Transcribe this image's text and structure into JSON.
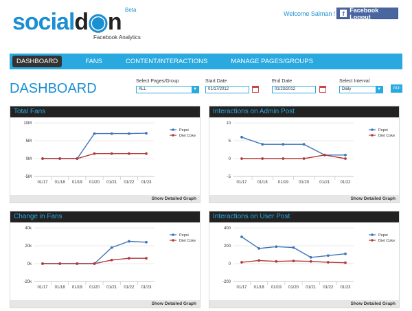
{
  "header": {
    "logo": {
      "text_main": "social",
      "text_dark": "d",
      "text_end": "n",
      "beta": "Beta",
      "subtitle": "Facebook Analytics"
    },
    "welcome": "Welcome Salman !",
    "logout_label": "Facebook Logout"
  },
  "nav": {
    "items": [
      "DASHBOARD",
      "FANS",
      "CONTENT/INTERACTIONS",
      "MANAGE PAGES/GROUPS"
    ]
  },
  "page_title": "DASHBOARD",
  "filters": {
    "pages_label": "Select Pages/Group",
    "pages_value": "ALL",
    "start_label": "Start Date",
    "start_value": "01/17/2012",
    "end_label": "End Date",
    "end_value": "01/23/2012",
    "interval_label": "Select Interval",
    "interval_value": "Daily",
    "go_label": "GO!"
  },
  "colors": {
    "accent": "#29a9e0",
    "pepsi": "#3f74b8",
    "dietcoke": "#b23a3a"
  },
  "panels": [
    {
      "title": "Total Fans",
      "footer": "Show Detailed Graph"
    },
    {
      "title": "Interactions on Admin Post",
      "footer": "Show Detailed Graph"
    },
    {
      "title": "Change in Fans",
      "footer": "Show Detailed Graph"
    },
    {
      "title": "Interactions on User Post",
      "footer": "Show Detailed Graph"
    }
  ],
  "chart_data": [
    {
      "type": "line",
      "title": "Total Fans",
      "categories": [
        "01/17",
        "01/18",
        "01/19",
        "01/20",
        "01/21",
        "01/22",
        "01/23"
      ],
      "yticks": [
        "10M",
        "5M",
        "0M",
        "-5M"
      ],
      "ytick_values": [
        10,
        5,
        0,
        -5
      ],
      "ylim": [
        -5,
        10
      ],
      "grid": true,
      "legend": "top-right",
      "series": [
        {
          "name": "Pepsi",
          "values": [
            0,
            0,
            0,
            7,
            7,
            7,
            7.1
          ]
        },
        {
          "name": "Diet Coke",
          "values": [
            0,
            0,
            0,
            1.4,
            1.4,
            1.4,
            1.4
          ]
        }
      ]
    },
    {
      "type": "line",
      "title": "Interactions on Admin Post",
      "categories": [
        "01/17",
        "01/18",
        "01/19",
        "01/20",
        "01/21",
        "01/22"
      ],
      "yticks": [
        "10",
        "5",
        "0",
        "-5"
      ],
      "ytick_values": [
        10,
        5,
        0,
        -5
      ],
      "ylim": [
        -5,
        10
      ],
      "grid": true,
      "legend": "top-right",
      "series": [
        {
          "name": "Pepsi",
          "values": [
            6,
            4,
            4,
            4,
            1,
            1
          ]
        },
        {
          "name": "Diet Coke",
          "values": [
            0,
            0,
            0,
            0,
            1,
            0
          ]
        }
      ]
    },
    {
      "type": "line",
      "title": "Change in Fans",
      "categories": [
        "01/17",
        "01/18",
        "01/19",
        "01/20",
        "01/21",
        "01/22",
        "01/23"
      ],
      "yticks": [
        "40k",
        "20k",
        "0k",
        "-20k"
      ],
      "ytick_values": [
        40,
        20,
        0,
        -20
      ],
      "ylim": [
        -20,
        40
      ],
      "grid": true,
      "legend": "top-right",
      "series": [
        {
          "name": "Pepsi",
          "values": [
            0,
            0,
            0,
            0,
            18,
            25,
            24
          ]
        },
        {
          "name": "Diet Coke",
          "values": [
            0,
            0,
            0,
            0,
            4,
            6,
            6
          ]
        }
      ]
    },
    {
      "type": "line",
      "title": "Interactions on User Post",
      "categories": [
        "01/17",
        "01/18",
        "01/19",
        "01/20",
        "01/21",
        "01/22",
        "01/23"
      ],
      "yticks": [
        "400",
        "200",
        "0",
        "-200"
      ],
      "ytick_values": [
        400,
        200,
        0,
        -200
      ],
      "ylim": [
        -200,
        400
      ],
      "grid": true,
      "legend": "top-right",
      "series": [
        {
          "name": "Pepsi",
          "values": [
            300,
            170,
            190,
            180,
            70,
            90,
            110
          ]
        },
        {
          "name": "Diet Coke",
          "values": [
            15,
            35,
            25,
            30,
            25,
            15,
            10
          ]
        }
      ]
    }
  ]
}
